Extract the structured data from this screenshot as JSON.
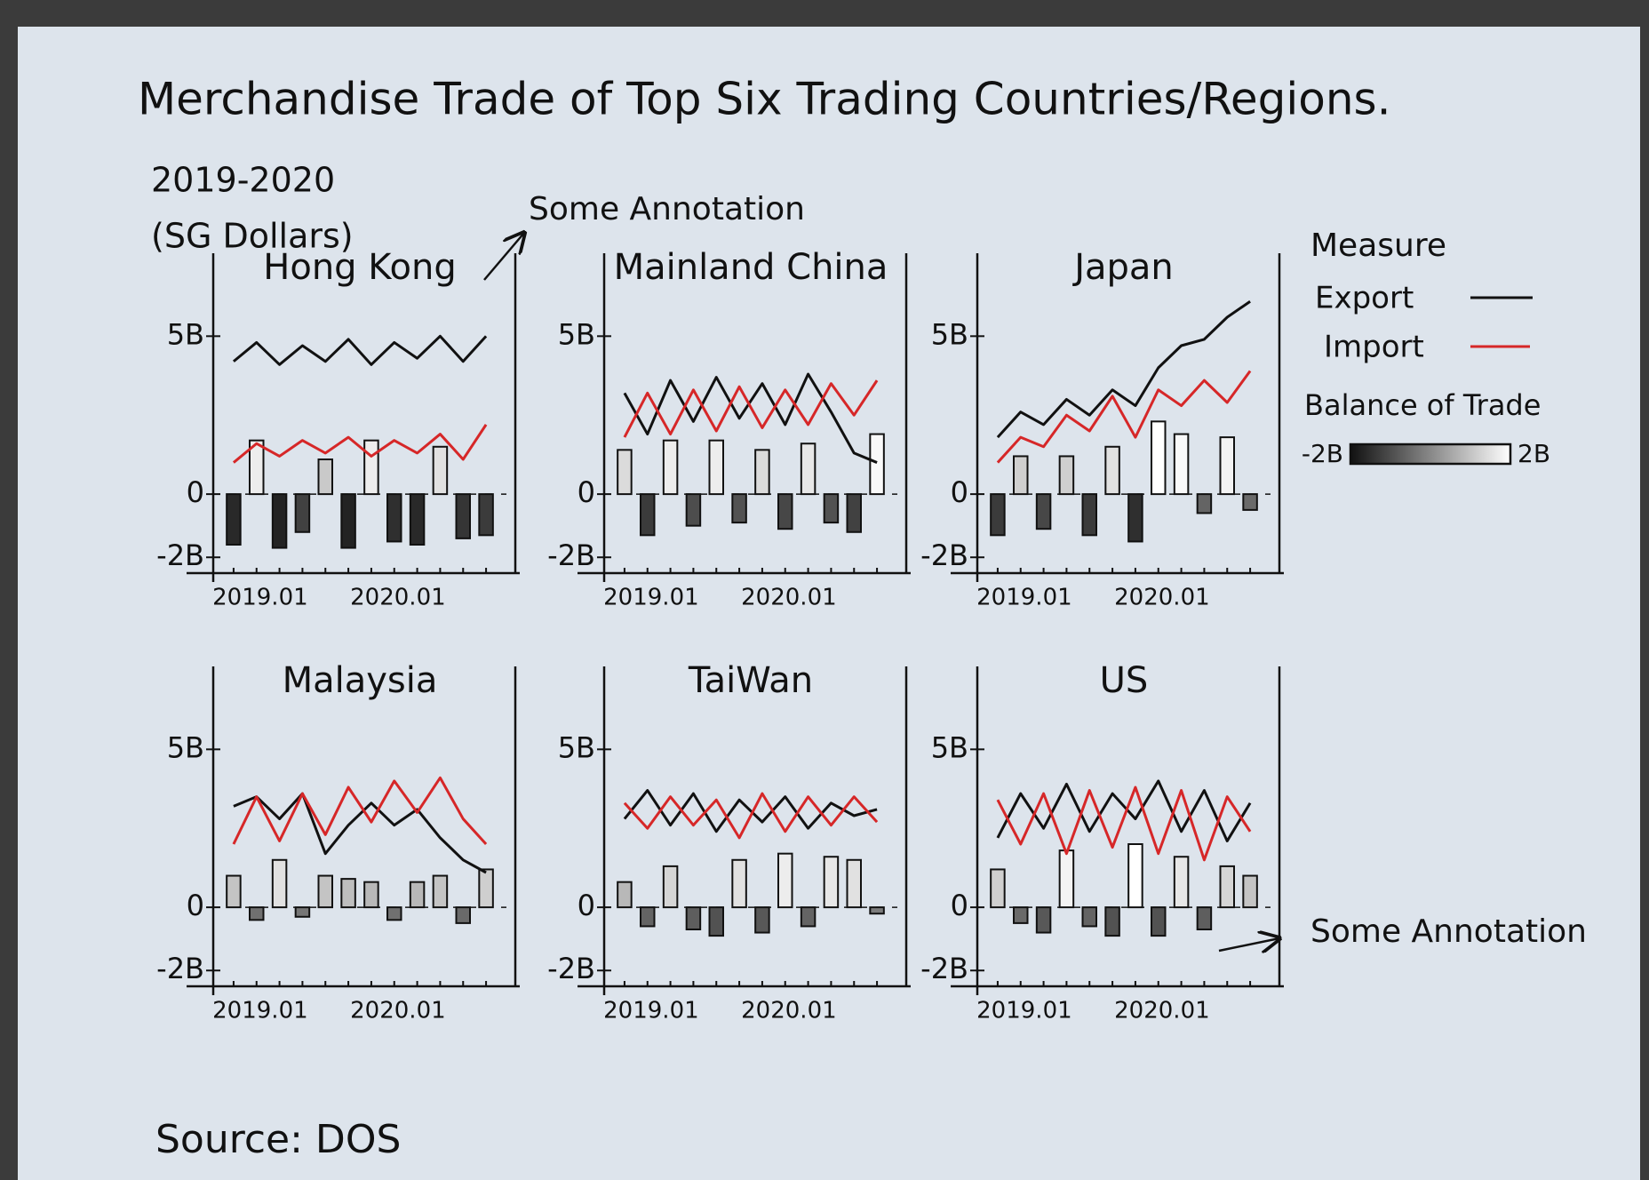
{
  "title": "Merchandise Trade of Top Six Trading Countries/Regions.",
  "subtitle": "2019-2020",
  "unit_note": "(SG Dollars)",
  "source": "Source: DOS",
  "annotations": [
    "Some Annotation",
    "Some Annotation"
  ],
  "legend": {
    "title": "Measure",
    "scale": [
      {
        "value": -2,
        "label": "-2B"
      },
      {
        "value": 2,
        "label": "2B"
      }
    ]
  },
  "chart_data": [
    {
      "type": "combo",
      "title": "Hong Kong",
      "categories": [
        "2019.01",
        null,
        null,
        null,
        null,
        null,
        "2020.01",
        null,
        null,
        null,
        null,
        null
      ],
      "ylim": [
        -2.5,
        6.5
      ],
      "yticks": [
        {
          "value": 5,
          "label": "5B"
        },
        0,
        {
          "value": -2,
          "label": "-2B"
        }
      ],
      "series": [
        {
          "name": "Export",
          "color": "#111111",
          "values": [
            4.2,
            4.8,
            4.1,
            4.7,
            4.2,
            4.9,
            4.1,
            4.8,
            4.3,
            5.0,
            4.2,
            5.0
          ]
        },
        {
          "name": "Import",
          "color": "#d62728",
          "values": [
            1.0,
            1.6,
            1.2,
            1.7,
            1.3,
            1.8,
            1.2,
            1.7,
            1.3,
            1.9,
            1.1,
            2.2
          ]
        },
        {
          "name": "Balance of Trade",
          "color": "#111111",
          "values": [
            -1.6,
            1.7,
            -1.7,
            -1.2,
            1.1,
            -1.7,
            1.7,
            -1.5,
            -1.6,
            1.5,
            -1.4,
            -1.3
          ]
        }
      ]
    },
    {
      "type": "combo",
      "title": "Mainland China",
      "categories": [
        "2019.01",
        null,
        null,
        null,
        null,
        null,
        "2020.01",
        null,
        null,
        null,
        null,
        null
      ],
      "ylim": [
        -2.5,
        6.5
      ],
      "yticks": [
        {
          "value": 5,
          "label": "5B"
        },
        0,
        {
          "value": -2,
          "label": "-2B"
        }
      ],
      "series": [
        {
          "name": "Export",
          "color": "#111111",
          "values": [
            3.2,
            1.9,
            3.6,
            2.3,
            3.7,
            2.4,
            3.5,
            2.2,
            3.8,
            2.6,
            1.3,
            1.0
          ]
        },
        {
          "name": "Import",
          "color": "#d62728",
          "values": [
            1.8,
            3.2,
            1.9,
            3.3,
            2.0,
            3.4,
            2.1,
            3.3,
            2.2,
            3.5,
            2.5,
            3.6
          ]
        },
        {
          "name": "Balance of Trade",
          "color": "#111111",
          "values": [
            1.4,
            -1.3,
            1.7,
            -1.0,
            1.7,
            -0.9,
            1.4,
            -1.1,
            1.6,
            -0.9,
            -1.2,
            1.9
          ]
        }
      ]
    },
    {
      "type": "combo",
      "title": "Japan",
      "categories": [
        "2019.01",
        null,
        null,
        null,
        null,
        null,
        "2020.01",
        null,
        null,
        null,
        null,
        null
      ],
      "ylim": [
        -2.5,
        6.5
      ],
      "yticks": [
        {
          "value": 5,
          "label": "5B"
        },
        0,
        {
          "value": -2,
          "label": "-2B"
        }
      ],
      "series": [
        {
          "name": "Export",
          "color": "#111111",
          "values": [
            1.8,
            2.6,
            2.2,
            3.0,
            2.5,
            3.3,
            2.8,
            4.0,
            4.7,
            4.9,
            5.6,
            6.1
          ]
        },
        {
          "name": "Import",
          "color": "#d62728",
          "values": [
            1.0,
            1.8,
            1.5,
            2.5,
            2.0,
            3.1,
            1.8,
            3.3,
            2.8,
            3.6,
            2.9,
            3.9
          ]
        },
        {
          "name": "Balance of Trade",
          "color": "#111111",
          "values": [
            -1.3,
            1.2,
            -1.1,
            1.2,
            -1.3,
            1.5,
            -1.5,
            2.3,
            1.9,
            -0.6,
            1.8,
            -0.5
          ]
        }
      ]
    },
    {
      "type": "combo",
      "title": "Malaysia",
      "categories": [
        "2019.01",
        null,
        null,
        null,
        null,
        null,
        "2020.01",
        null,
        null,
        null,
        null,
        null
      ],
      "ylim": [
        -2.5,
        6.5
      ],
      "yticks": [
        {
          "value": 5,
          "label": "5B"
        },
        0,
        {
          "value": -2,
          "label": "-2B"
        }
      ],
      "series": [
        {
          "name": "Export",
          "color": "#111111",
          "values": [
            3.2,
            3.5,
            2.8,
            3.6,
            1.7,
            2.6,
            3.3,
            2.6,
            3.1,
            2.2,
            1.5,
            1.1
          ]
        },
        {
          "name": "Import",
          "color": "#d62728",
          "values": [
            2.0,
            3.5,
            2.1,
            3.6,
            2.3,
            3.8,
            2.7,
            4.0,
            3.0,
            4.1,
            2.8,
            2.0
          ]
        },
        {
          "name": "Balance of Trade",
          "color": "#111111",
          "values": [
            1.0,
            -0.4,
            1.5,
            -0.3,
            1.0,
            0.9,
            0.8,
            -0.4,
            0.8,
            1.0,
            -0.5,
            1.2
          ]
        }
      ]
    },
    {
      "type": "combo",
      "title": "TaiWan",
      "categories": [
        "2019.01",
        null,
        null,
        null,
        null,
        null,
        "2020.01",
        null,
        null,
        null,
        null,
        null
      ],
      "ylim": [
        -2.5,
        6.5
      ],
      "yticks": [
        {
          "value": 5,
          "label": "5B"
        },
        0,
        {
          "value": -2,
          "label": "-2B"
        }
      ],
      "series": [
        {
          "name": "Export",
          "color": "#111111",
          "values": [
            2.8,
            3.7,
            2.6,
            3.6,
            2.4,
            3.4,
            2.7,
            3.5,
            2.5,
            3.3,
            2.9,
            3.1
          ]
        },
        {
          "name": "Import",
          "color": "#d62728",
          "values": [
            3.3,
            2.5,
            3.5,
            2.6,
            3.4,
            2.2,
            3.6,
            2.4,
            3.5,
            2.6,
            3.5,
            2.7
          ]
        },
        {
          "name": "Balance of Trade",
          "color": "#111111",
          "values": [
            0.8,
            -0.6,
            1.3,
            -0.7,
            -0.9,
            1.5,
            -0.8,
            1.7,
            -0.6,
            1.6,
            1.5,
            -0.2
          ]
        }
      ]
    },
    {
      "type": "combo",
      "title": "US",
      "categories": [
        "2019.01",
        null,
        null,
        null,
        null,
        null,
        "2020.01",
        null,
        null,
        null,
        null,
        null
      ],
      "ylim": [
        -2.5,
        6.5
      ],
      "yticks": [
        {
          "value": 5,
          "label": "5B"
        },
        0,
        {
          "value": -2,
          "label": "-2B"
        }
      ],
      "series": [
        {
          "name": "Export",
          "color": "#111111",
          "values": [
            2.2,
            3.6,
            2.5,
            3.9,
            2.4,
            3.6,
            2.8,
            4.0,
            2.4,
            3.7,
            2.1,
            3.3
          ]
        },
        {
          "name": "Import",
          "color": "#d62728",
          "values": [
            3.4,
            2.0,
            3.6,
            1.7,
            3.7,
            1.9,
            3.8,
            1.7,
            3.7,
            1.5,
            3.5,
            2.4
          ]
        },
        {
          "name": "Balance of Trade",
          "color": "#111111",
          "values": [
            1.2,
            -0.5,
            -0.8,
            1.8,
            -0.6,
            -0.9,
            2.0,
            -0.9,
            1.6,
            -0.7,
            1.3,
            1.0
          ]
        }
      ]
    }
  ]
}
